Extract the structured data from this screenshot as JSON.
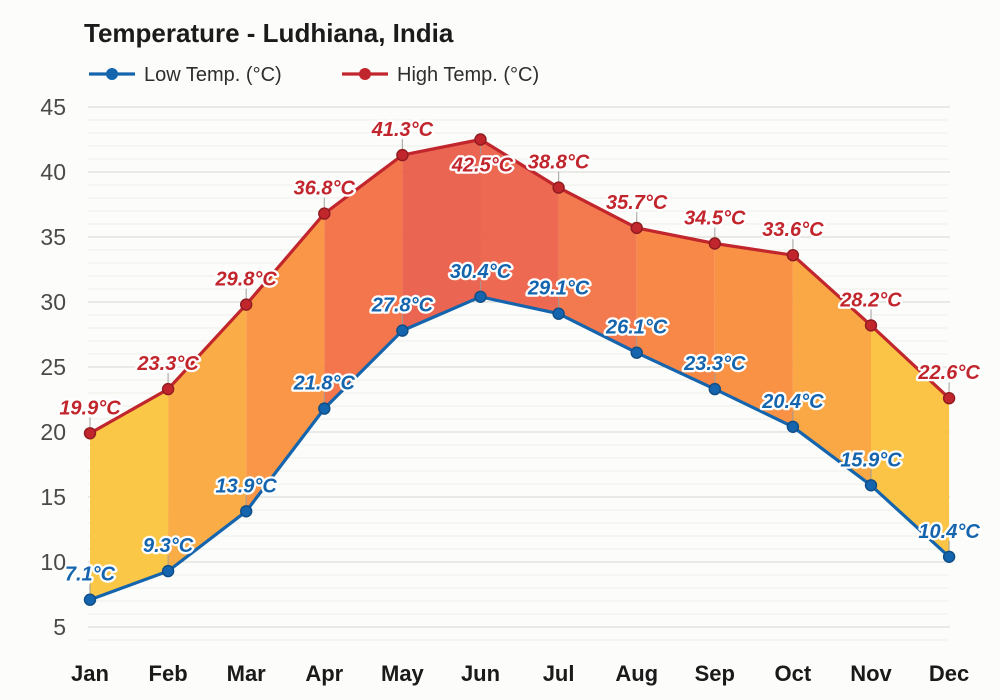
{
  "chart_data": {
    "type": "line",
    "title": "Temperature - Ludhiana, India",
    "categories": [
      "Jan",
      "Feb",
      "Mar",
      "Apr",
      "May",
      "Jun",
      "Jul",
      "Aug",
      "Sep",
      "Oct",
      "Nov",
      "Dec"
    ],
    "series": [
      {
        "name": "Low Temp. (°C)",
        "color": "#1565AE",
        "point_stroke": "#0F4C85",
        "values": [
          7.1,
          9.3,
          13.9,
          21.8,
          27.8,
          30.4,
          29.1,
          26.1,
          23.3,
          20.4,
          15.9,
          10.4
        ]
      },
      {
        "name": "High Temp. (°C)",
        "color": "#C2262D",
        "point_stroke": "#8F1B21",
        "values": [
          19.9,
          23.3,
          29.8,
          36.8,
          41.3,
          42.5,
          38.8,
          35.7,
          34.5,
          33.6,
          28.2,
          22.6
        ]
      }
    ],
    "unit": "°C",
    "ylabel": "",
    "xlabel": "",
    "ylim": [
      5,
      45
    ],
    "y_tick_step": 5,
    "y_minor_step": 1,
    "grid": true,
    "legend_position": "top-left",
    "band_colors": [
      "#FBC540",
      "#FAAA3E",
      "#F9923F",
      "#F27046",
      "#EA5F4C",
      "#EC634B",
      "#F37447",
      "#F8833F",
      "#F98E3D",
      "#FAA43D",
      "#FBC23F"
    ]
  }
}
